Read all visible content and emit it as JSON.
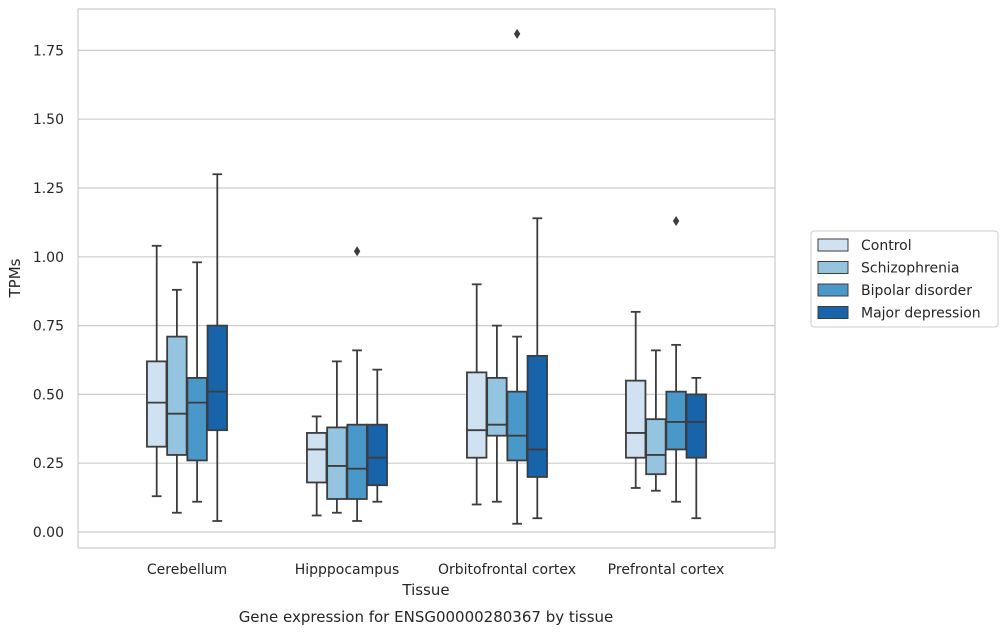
{
  "chart_data": {
    "type": "box",
    "caption": "Gene expression for ENSG00000280367 by tissue",
    "xlabel": "Tissue",
    "ylabel": "TPMs",
    "ylim": [
      -0.05,
      1.9
    ],
    "yticks": [
      "0.00",
      "0.25",
      "0.50",
      "0.75",
      "1.00",
      "1.25",
      "1.50",
      "1.75"
    ],
    "grid": "horizontal",
    "legend_position": "right",
    "categories": [
      "Cerebellum",
      "Hipppocampus",
      "Orbitofrontal cortex",
      "Prefrontal cortex"
    ],
    "series": [
      {
        "name": "Control",
        "color": "#d0e1f2",
        "boxes": [
          {
            "whislo": 0.13,
            "q1": 0.31,
            "med": 0.47,
            "q3": 0.62,
            "whishi": 1.04,
            "fliers": []
          },
          {
            "whislo": 0.06,
            "q1": 0.18,
            "med": 0.3,
            "q3": 0.36,
            "whishi": 0.42,
            "fliers": []
          },
          {
            "whislo": 0.1,
            "q1": 0.27,
            "med": 0.37,
            "q3": 0.58,
            "whishi": 0.9,
            "fliers": []
          },
          {
            "whislo": 0.16,
            "q1": 0.27,
            "med": 0.36,
            "q3": 0.55,
            "whishi": 0.8,
            "fliers": []
          }
        ]
      },
      {
        "name": "Schizophrenia",
        "color": "#94c4df",
        "boxes": [
          {
            "whislo": 0.07,
            "q1": 0.28,
            "med": 0.43,
            "q3": 0.71,
            "whishi": 0.88,
            "fliers": []
          },
          {
            "whislo": 0.07,
            "q1": 0.12,
            "med": 0.24,
            "q3": 0.38,
            "whishi": 0.62,
            "fliers": []
          },
          {
            "whislo": 0.11,
            "q1": 0.35,
            "med": 0.39,
            "q3": 0.56,
            "whishi": 0.75,
            "fliers": []
          },
          {
            "whislo": 0.15,
            "q1": 0.21,
            "med": 0.28,
            "q3": 0.41,
            "whishi": 0.66,
            "fliers": []
          }
        ]
      },
      {
        "name": "Bipolar disorder",
        "color": "#4a98c9",
        "boxes": [
          {
            "whislo": 0.11,
            "q1": 0.26,
            "med": 0.47,
            "q3": 0.56,
            "whishi": 0.98,
            "fliers": []
          },
          {
            "whislo": 0.04,
            "q1": 0.12,
            "med": 0.23,
            "q3": 0.39,
            "whishi": 0.66,
            "fliers": [
              1.02
            ]
          },
          {
            "whislo": 0.03,
            "q1": 0.26,
            "med": 0.35,
            "q3": 0.51,
            "whishi": 0.71,
            "fliers": [
              1.81
            ]
          },
          {
            "whislo": 0.11,
            "q1": 0.3,
            "med": 0.4,
            "q3": 0.51,
            "whishi": 0.68,
            "fliers": [
              1.13
            ]
          }
        ]
      },
      {
        "name": "Major depression",
        "color": "#1764ab",
        "boxes": [
          {
            "whislo": 0.04,
            "q1": 0.37,
            "med": 0.51,
            "q3": 0.75,
            "whishi": 1.3,
            "fliers": []
          },
          {
            "whislo": 0.11,
            "q1": 0.17,
            "med": 0.27,
            "q3": 0.39,
            "whishi": 0.59,
            "fliers": []
          },
          {
            "whislo": 0.05,
            "q1": 0.2,
            "med": 0.3,
            "q3": 0.64,
            "whishi": 1.14,
            "fliers": []
          },
          {
            "whislo": 0.05,
            "q1": 0.27,
            "med": 0.4,
            "q3": 0.5,
            "whishi": 0.56,
            "fliers": []
          }
        ]
      }
    ]
  }
}
